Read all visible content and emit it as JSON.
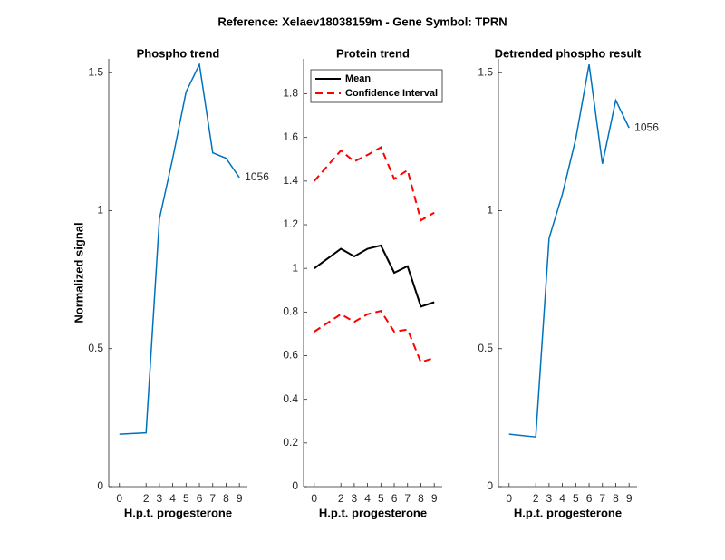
{
  "title": "Reference:  Xelaev18038159m - Gene Symbol:  TPRN",
  "chart_data": [
    {
      "type": "line",
      "title": "Phospho trend",
      "xlabel": "H.p.t. progesterone",
      "ylabel": "Normalized signal",
      "x": [
        0,
        2,
        3,
        4,
        5,
        6,
        7,
        8,
        9
      ],
      "series": [
        {
          "color": "#0072bd",
          "values": [
            0.19,
            0.195,
            0.97,
            1.19,
            1.43,
            1.53,
            1.21,
            1.19,
            1.12
          ]
        }
      ],
      "annotation": "1056",
      "xlim": [
        -0.8,
        9.6
      ],
      "xticks": [
        0,
        2,
        3,
        4,
        5,
        6,
        7,
        8,
        9
      ],
      "ylim": [
        0,
        1.55
      ],
      "yticks": [
        0,
        0.5,
        1,
        1.5
      ]
    },
    {
      "type": "line",
      "title": "Protein trend",
      "xlabel": "H.p.t. progesterone",
      "x": [
        0,
        2,
        3,
        4,
        5,
        6,
        7,
        8,
        9
      ],
      "series": [
        {
          "name": "Mean",
          "color": "#000000",
          "values": [
            1.0,
            1.09,
            1.055,
            1.09,
            1.105,
            0.98,
            1.01,
            0.825,
            0.845
          ]
        },
        {
          "name": "Confidence Interval",
          "color": "#ff0000",
          "dashed": true,
          "upper": [
            1.4,
            1.54,
            1.49,
            1.52,
            1.555,
            1.41,
            1.45,
            1.22,
            1.255
          ],
          "lower": [
            0.71,
            0.79,
            0.755,
            0.79,
            0.805,
            0.71,
            0.72,
            0.57,
            0.59
          ]
        }
      ],
      "legend": "northwest",
      "xlim": [
        -0.8,
        9.6
      ],
      "xticks": [
        0,
        2,
        3,
        4,
        5,
        6,
        7,
        8,
        9
      ],
      "ylim": [
        0,
        1.96
      ],
      "yticks": [
        0,
        0.2,
        0.4,
        0.6,
        0.8,
        1,
        1.2,
        1.4,
        1.6,
        1.8
      ]
    },
    {
      "type": "line",
      "title": "Detrended phospho result",
      "xlabel": "H.p.t. progesterone",
      "x": [
        0,
        2,
        3,
        4,
        5,
        6,
        7,
        8,
        9
      ],
      "series": [
        {
          "color": "#0072bd",
          "values": [
            0.19,
            0.18,
            0.9,
            1.06,
            1.26,
            1.53,
            1.17,
            1.4,
            1.3
          ]
        }
      ],
      "annotation": "1056",
      "xlim": [
        -0.8,
        9.6
      ],
      "xticks": [
        0,
        2,
        3,
        4,
        5,
        6,
        7,
        8,
        9
      ],
      "ylim": [
        0,
        1.55
      ],
      "yticks": [
        0,
        0.5,
        1,
        1.5
      ]
    }
  ]
}
